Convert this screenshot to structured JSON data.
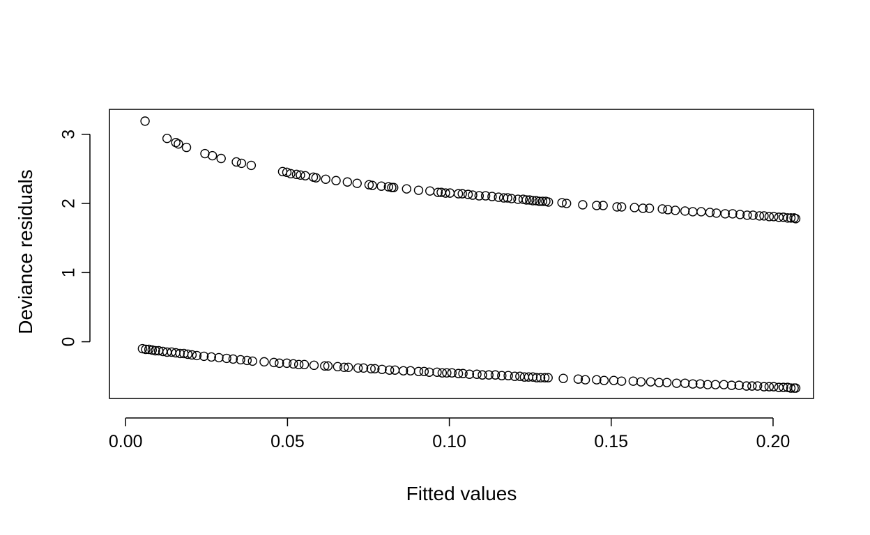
{
  "chart_data": {
    "type": "scatter",
    "xlabel": "Fitted values",
    "ylabel": "Deviance residuals",
    "xlim": [
      -0.005,
      0.2125
    ],
    "ylim": [
      -0.82,
      3.36
    ],
    "x_ticks": [
      0.0,
      0.05,
      0.1,
      0.15,
      0.2
    ],
    "x_tick_labels": [
      "0.00",
      "0.05",
      "0.10",
      "0.15",
      "0.20"
    ],
    "y_ticks": [
      0,
      1,
      2,
      3
    ],
    "y_tick_labels": [
      "0",
      "1",
      "2",
      "3"
    ],
    "grid": false,
    "legend": "none",
    "marker": "open-circle",
    "colors": {
      "point": "#000000",
      "frame": "#000000",
      "background": "#ffffff"
    },
    "series": [
      {
        "values_label": "upper",
        "points": [
          [
            0.006,
            3.19
          ],
          [
            0.0128,
            2.94
          ],
          [
            0.0155,
            2.88
          ],
          [
            0.0163,
            2.86
          ],
          [
            0.0188,
            2.81
          ],
          [
            0.0245,
            2.72
          ],
          [
            0.0268,
            2.69
          ],
          [
            0.0295,
            2.65
          ],
          [
            0.0342,
            2.6
          ],
          [
            0.0358,
            2.58
          ],
          [
            0.0388,
            2.55
          ],
          [
            0.0485,
            2.46
          ],
          [
            0.0498,
            2.45
          ],
          [
            0.051,
            2.43
          ],
          [
            0.0528,
            2.42
          ],
          [
            0.054,
            2.41
          ],
          [
            0.0555,
            2.4
          ],
          [
            0.058,
            2.38
          ],
          [
            0.0588,
            2.37
          ],
          [
            0.0618,
            2.35
          ],
          [
            0.065,
            2.33
          ],
          [
            0.0685,
            2.31
          ],
          [
            0.0715,
            2.29
          ],
          [
            0.0752,
            2.27
          ],
          [
            0.0762,
            2.26
          ],
          [
            0.079,
            2.25
          ],
          [
            0.0812,
            2.24
          ],
          [
            0.0822,
            2.23
          ],
          [
            0.0828,
            2.23
          ],
          [
            0.0868,
            2.21
          ],
          [
            0.0905,
            2.19
          ],
          [
            0.094,
            2.18
          ],
          [
            0.0965,
            2.16
          ],
          [
            0.0975,
            2.16
          ],
          [
            0.0988,
            2.15
          ],
          [
            0.1002,
            2.15
          ],
          [
            0.1028,
            2.14
          ],
          [
            0.104,
            2.14
          ],
          [
            0.1058,
            2.13
          ],
          [
            0.1072,
            2.12
          ],
          [
            0.1092,
            2.11
          ],
          [
            0.1112,
            2.11
          ],
          [
            0.1132,
            2.1
          ],
          [
            0.1152,
            2.09
          ],
          [
            0.1168,
            2.08
          ],
          [
            0.118,
            2.08
          ],
          [
            0.1192,
            2.07
          ],
          [
            0.1212,
            2.06
          ],
          [
            0.1228,
            2.06
          ],
          [
            0.1238,
            2.05
          ],
          [
            0.1248,
            2.05
          ],
          [
            0.1258,
            2.04
          ],
          [
            0.1268,
            2.04
          ],
          [
            0.1278,
            2.03
          ],
          [
            0.1288,
            2.03
          ],
          [
            0.1298,
            2.03
          ],
          [
            0.1306,
            2.02
          ],
          [
            0.1348,
            2.01
          ],
          [
            0.1362,
            2.0
          ],
          [
            0.1412,
            1.98
          ],
          [
            0.1455,
            1.97
          ],
          [
            0.1475,
            1.97
          ],
          [
            0.1518,
            1.95
          ],
          [
            0.1532,
            1.95
          ],
          [
            0.1572,
            1.94
          ],
          [
            0.1598,
            1.93
          ],
          [
            0.1618,
            1.93
          ],
          [
            0.1658,
            1.92
          ],
          [
            0.1675,
            1.91
          ],
          [
            0.1698,
            1.9
          ],
          [
            0.1728,
            1.89
          ],
          [
            0.1752,
            1.88
          ],
          [
            0.1778,
            1.88
          ],
          [
            0.1805,
            1.87
          ],
          [
            0.1825,
            1.86
          ],
          [
            0.1852,
            1.85
          ],
          [
            0.1875,
            1.85
          ],
          [
            0.1898,
            1.84
          ],
          [
            0.192,
            1.83
          ],
          [
            0.1938,
            1.83
          ],
          [
            0.1958,
            1.82
          ],
          [
            0.1972,
            1.82
          ],
          [
            0.1988,
            1.81
          ],
          [
            0.2002,
            1.81
          ],
          [
            0.2018,
            1.8
          ],
          [
            0.2032,
            1.8
          ],
          [
            0.2045,
            1.79
          ],
          [
            0.2055,
            1.79
          ],
          [
            0.2065,
            1.79
          ],
          [
            0.207,
            1.78
          ]
        ]
      },
      {
        "values_label": "lower",
        "points": [
          [
            0.0052,
            -0.1
          ],
          [
            0.0062,
            -0.11
          ],
          [
            0.0072,
            -0.11
          ],
          [
            0.0082,
            -0.12
          ],
          [
            0.0092,
            -0.13
          ],
          [
            0.0102,
            -0.13
          ],
          [
            0.0115,
            -0.14
          ],
          [
            0.0128,
            -0.15
          ],
          [
            0.0142,
            -0.15
          ],
          [
            0.0155,
            -0.16
          ],
          [
            0.0168,
            -0.17
          ],
          [
            0.018,
            -0.17
          ],
          [
            0.0192,
            -0.18
          ],
          [
            0.0205,
            -0.19
          ],
          [
            0.022,
            -0.2
          ],
          [
            0.0242,
            -0.21
          ],
          [
            0.0265,
            -0.22
          ],
          [
            0.0288,
            -0.23
          ],
          [
            0.0312,
            -0.24
          ],
          [
            0.0332,
            -0.25
          ],
          [
            0.0355,
            -0.26
          ],
          [
            0.0375,
            -0.27
          ],
          [
            0.0392,
            -0.28
          ],
          [
            0.0428,
            -0.29
          ],
          [
            0.0458,
            -0.3
          ],
          [
            0.0475,
            -0.31
          ],
          [
            0.0498,
            -0.31
          ],
          [
            0.0518,
            -0.32
          ],
          [
            0.0535,
            -0.33
          ],
          [
            0.0552,
            -0.33
          ],
          [
            0.0582,
            -0.34
          ],
          [
            0.0615,
            -0.35
          ],
          [
            0.0625,
            -0.35
          ],
          [
            0.0655,
            -0.36
          ],
          [
            0.0675,
            -0.37
          ],
          [
            0.0688,
            -0.37
          ],
          [
            0.0718,
            -0.38
          ],
          [
            0.0735,
            -0.38
          ],
          [
            0.0758,
            -0.39
          ],
          [
            0.077,
            -0.39
          ],
          [
            0.0792,
            -0.4
          ],
          [
            0.0815,
            -0.41
          ],
          [
            0.0832,
            -0.41
          ],
          [
            0.0858,
            -0.42
          ],
          [
            0.088,
            -0.42
          ],
          [
            0.0905,
            -0.43
          ],
          [
            0.0922,
            -0.43
          ],
          [
            0.0938,
            -0.44
          ],
          [
            0.0962,
            -0.44
          ],
          [
            0.0978,
            -0.45
          ],
          [
            0.0992,
            -0.45
          ],
          [
            0.1008,
            -0.45
          ],
          [
            0.1028,
            -0.46
          ],
          [
            0.1042,
            -0.46
          ],
          [
            0.1062,
            -0.47
          ],
          [
            0.1085,
            -0.47
          ],
          [
            0.1102,
            -0.48
          ],
          [
            0.1122,
            -0.48
          ],
          [
            0.1142,
            -0.48
          ],
          [
            0.1162,
            -0.49
          ],
          [
            0.1182,
            -0.49
          ],
          [
            0.1202,
            -0.5
          ],
          [
            0.1218,
            -0.5
          ],
          [
            0.1232,
            -0.51
          ],
          [
            0.1245,
            -0.51
          ],
          [
            0.1258,
            -0.51
          ],
          [
            0.127,
            -0.52
          ],
          [
            0.1282,
            -0.52
          ],
          [
            0.1295,
            -0.52
          ],
          [
            0.1305,
            -0.52
          ],
          [
            0.1352,
            -0.53
          ],
          [
            0.1398,
            -0.54
          ],
          [
            0.142,
            -0.55
          ],
          [
            0.1455,
            -0.55
          ],
          [
            0.1478,
            -0.56
          ],
          [
            0.1508,
            -0.56
          ],
          [
            0.1532,
            -0.57
          ],
          [
            0.1568,
            -0.57
          ],
          [
            0.1592,
            -0.58
          ],
          [
            0.1622,
            -0.58
          ],
          [
            0.1648,
            -0.59
          ],
          [
            0.1672,
            -0.59
          ],
          [
            0.1702,
            -0.6
          ],
          [
            0.1728,
            -0.6
          ],
          [
            0.1752,
            -0.61
          ],
          [
            0.1775,
            -0.61
          ],
          [
            0.1798,
            -0.62
          ],
          [
            0.1822,
            -0.62
          ],
          [
            0.1848,
            -0.62
          ],
          [
            0.1872,
            -0.63
          ],
          [
            0.1895,
            -0.63
          ],
          [
            0.1918,
            -0.64
          ],
          [
            0.1935,
            -0.64
          ],
          [
            0.1952,
            -0.64
          ],
          [
            0.1972,
            -0.65
          ],
          [
            0.1988,
            -0.65
          ],
          [
            0.2002,
            -0.65
          ],
          [
            0.2018,
            -0.66
          ],
          [
            0.2032,
            -0.66
          ],
          [
            0.2045,
            -0.66
          ],
          [
            0.2055,
            -0.67
          ],
          [
            0.2065,
            -0.67
          ],
          [
            0.207,
            -0.67
          ]
        ]
      }
    ]
  }
}
